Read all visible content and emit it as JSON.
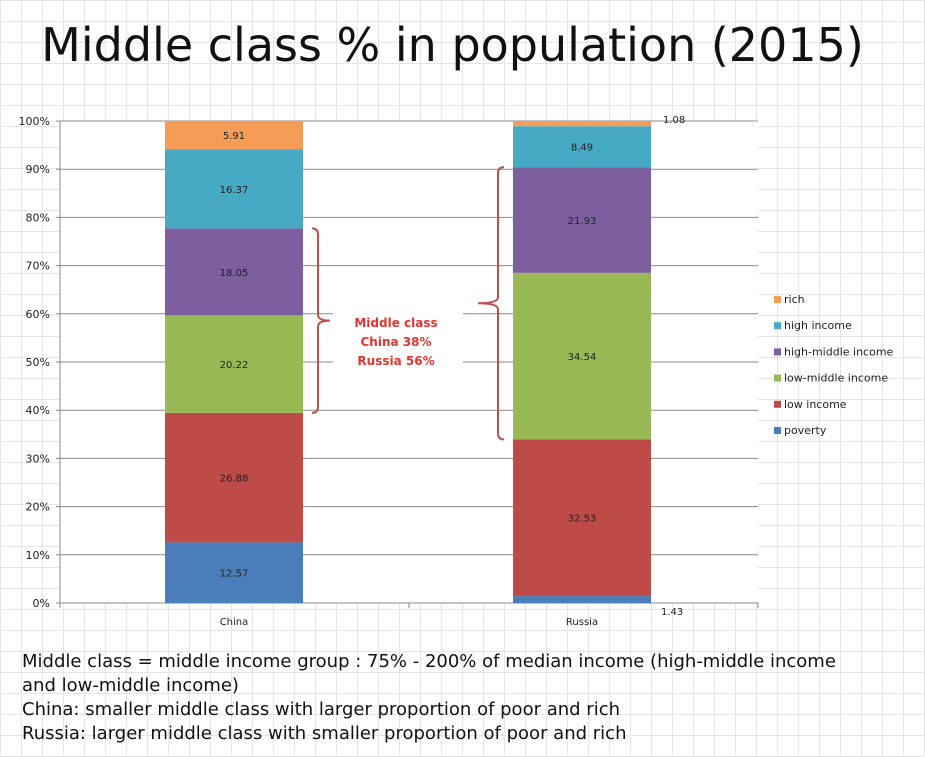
{
  "title": "Middle class % in population (2015)",
  "chart_data": {
    "type": "bar",
    "stacked": true,
    "percent": true,
    "categories": [
      "China",
      "Russia"
    ],
    "series": [
      {
        "name": "poverty",
        "color": "#4a7ebb",
        "values": [
          12.57,
          1.43
        ]
      },
      {
        "name": "low income",
        "color": "#be4b48",
        "values": [
          26.88,
          32.53
        ]
      },
      {
        "name": "low-middle income",
        "color": "#98b954",
        "values": [
          20.22,
          34.54
        ]
      },
      {
        "name": "high-middle income",
        "color": "#7d5fa0",
        "values": [
          18.05,
          21.93
        ]
      },
      {
        "name": "high income",
        "color": "#46aac5",
        "values": [
          16.37,
          8.49
        ]
      },
      {
        "name": "rich",
        "color": "#f59d56",
        "values": [
          5.91,
          1.08
        ]
      }
    ],
    "ylim": [
      0,
      100
    ],
    "yticks": [
      "0%",
      "10%",
      "20%",
      "30%",
      "40%",
      "50%",
      "60%",
      "70%",
      "80%",
      "90%",
      "100%"
    ],
    "legend_position": "right",
    "annotation": {
      "lines": [
        "Middle class",
        "China 38%",
        "Russia 56%"
      ],
      "color": "#e8322f"
    }
  },
  "notes": [
    "Middle class = middle income group : 75% - 200% of median income (high-middle income",
    "and low-middle income)",
    "China: smaller middle class with larger proportion of poor and rich",
    "Russia: larger middle class with smaller proportion of poor and rich"
  ]
}
